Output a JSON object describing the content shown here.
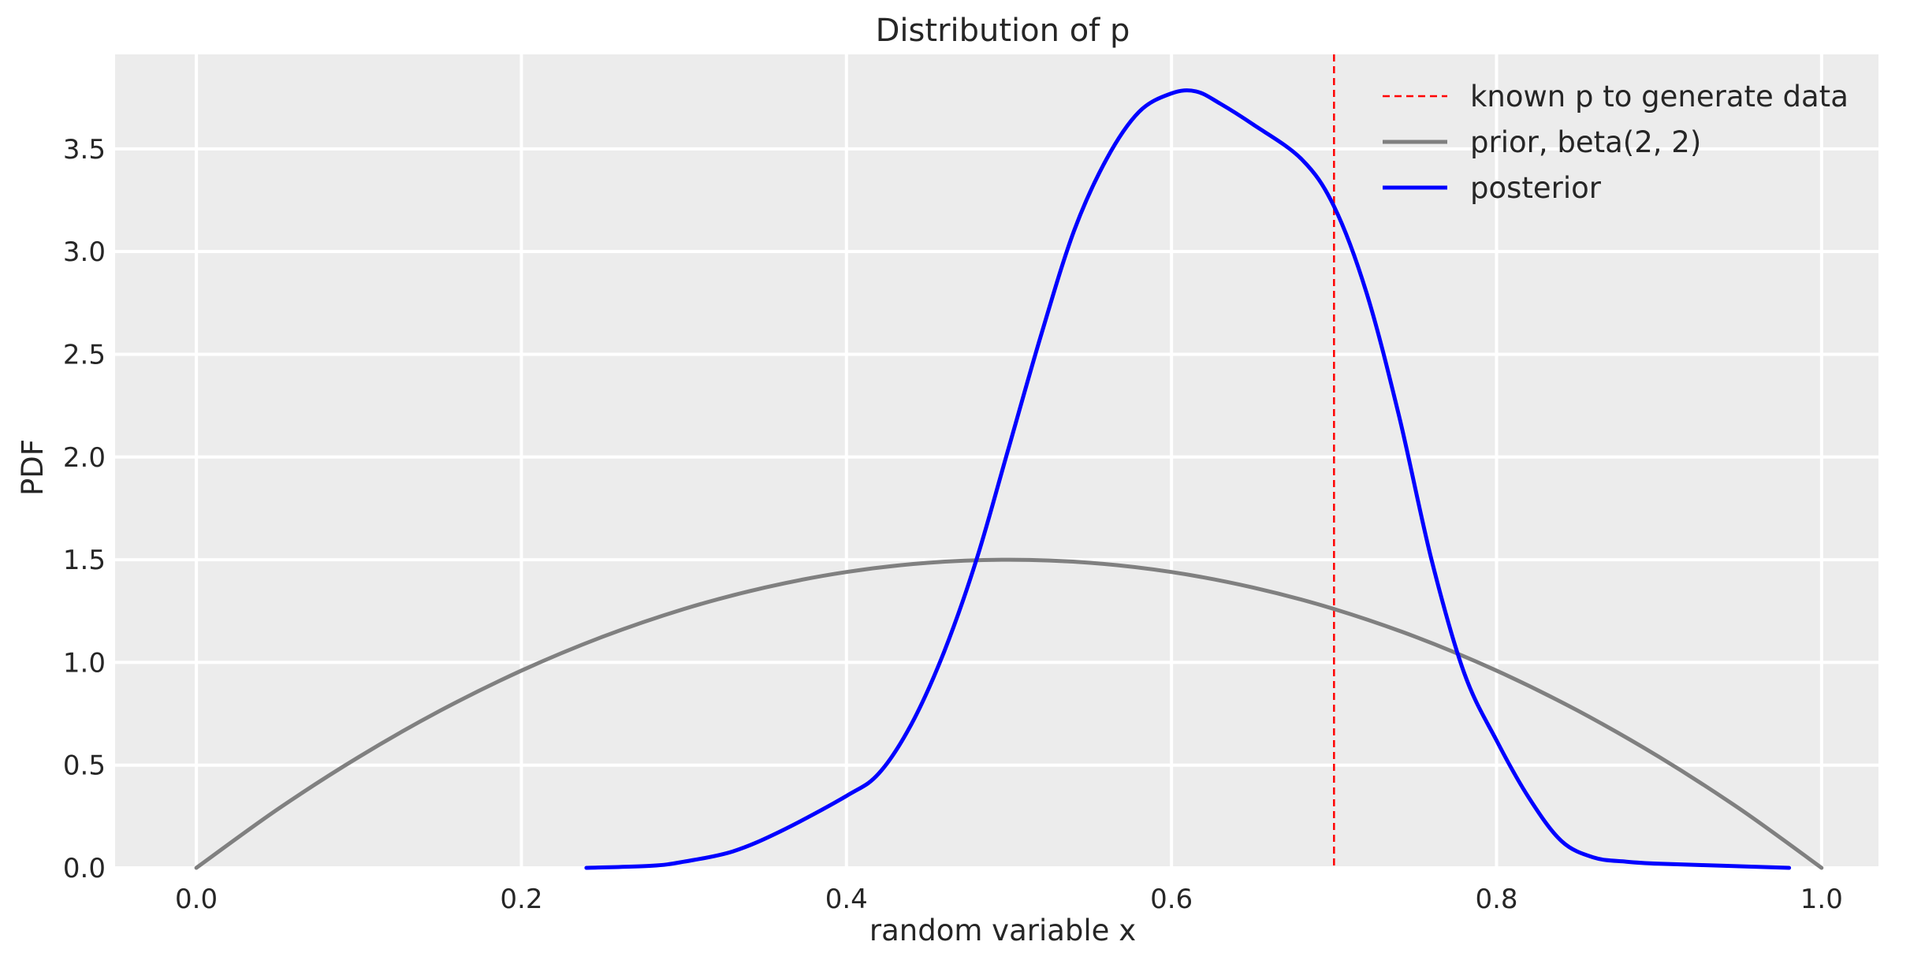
{
  "chart_data": {
    "type": "line",
    "title": "Distribution of p",
    "xlabel": "random variable x",
    "ylabel": "PDF",
    "xlim": [
      -0.05,
      1.035
    ],
    "ylim": [
      0.0,
      3.96
    ],
    "xticks": [
      0.0,
      0.2,
      0.4,
      0.6,
      0.8,
      1.0
    ],
    "xtick_labels": [
      "0.0",
      "0.2",
      "0.4",
      "0.6",
      "0.8",
      "1.0"
    ],
    "yticks": [
      0.0,
      0.5,
      1.0,
      1.5,
      2.0,
      2.5,
      3.0,
      3.5
    ],
    "ytick_labels": [
      "0.0",
      "0.5",
      "1.0",
      "1.5",
      "2.0",
      "2.5",
      "3.0",
      "3.5"
    ],
    "grid": true,
    "background": "#ececec",
    "legend_position": "top-right",
    "vline": {
      "name": "known p to generate data",
      "x": 0.7,
      "color": "#ff0000",
      "style": "dashed"
    },
    "series": [
      {
        "name": "prior, beta(2, 2)",
        "color": "#808080",
        "x": [
          0.0,
          0.05,
          0.1,
          0.15,
          0.2,
          0.25,
          0.3,
          0.35,
          0.4,
          0.45,
          0.5,
          0.55,
          0.6,
          0.65,
          0.7,
          0.75,
          0.8,
          0.85,
          0.9,
          0.95,
          1.0
        ],
        "y": [
          0.0,
          0.285,
          0.54,
          0.765,
          0.96,
          1.125,
          1.26,
          1.365,
          1.44,
          1.485,
          1.5,
          1.485,
          1.44,
          1.365,
          1.26,
          1.125,
          0.96,
          0.765,
          0.54,
          0.285,
          0.0
        ]
      },
      {
        "name": "posterior",
        "color": "#0000ff",
        "x": [
          0.24,
          0.28,
          0.3,
          0.33,
          0.36,
          0.4,
          0.42,
          0.44,
          0.46,
          0.48,
          0.5,
          0.52,
          0.54,
          0.56,
          0.58,
          0.6,
          0.615,
          0.63,
          0.65,
          0.68,
          0.7,
          0.72,
          0.74,
          0.76,
          0.78,
          0.8,
          0.82,
          0.84,
          0.86,
          0.88,
          0.9,
          0.94,
          0.98
        ],
        "y": [
          0.0,
          0.01,
          0.03,
          0.08,
          0.18,
          0.35,
          0.46,
          0.7,
          1.05,
          1.5,
          2.05,
          2.6,
          3.1,
          3.45,
          3.68,
          3.77,
          3.78,
          3.72,
          3.62,
          3.45,
          3.22,
          2.8,
          2.2,
          1.5,
          0.95,
          0.62,
          0.34,
          0.13,
          0.05,
          0.03,
          0.02,
          0.01,
          0.0
        ]
      }
    ]
  }
}
